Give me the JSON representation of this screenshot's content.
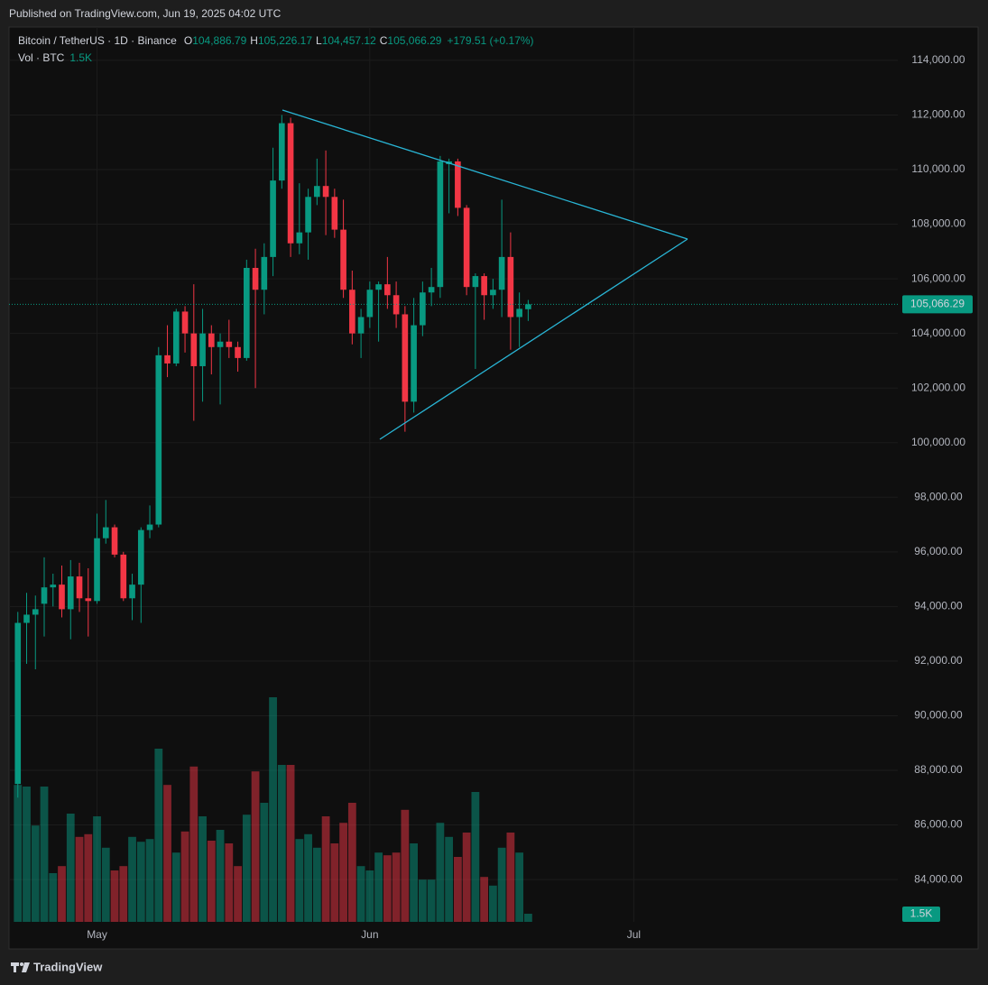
{
  "chart_data": {
    "type": "candlestick",
    "published": "Published on TradingView.com, Jun 19, 2025 04:02 UTC",
    "title": "Bitcoin / TetherUS · 1D · Binance",
    "brand": "TradingView",
    "up_color": "#089981",
    "down_color": "#f23645",
    "grid": true,
    "last": {
      "labels": [
        "O",
        "H",
        "L",
        "C"
      ],
      "value_labels": [
        "104,886.79",
        "105,226.17",
        "104,457.12",
        "105,066.29"
      ],
      "change": "+179.51 (+0.17%)"
    },
    "open": [
      87500,
      93400,
      93700,
      94100,
      94700,
      94800,
      93900,
      95100,
      94300,
      94200,
      96500,
      96900,
      95900,
      94300,
      94800,
      96800,
      97000,
      103200,
      102900,
      104800,
      104000,
      102800,
      104000,
      103500,
      103700,
      103500,
      103100,
      106400,
      105600,
      106800,
      109600,
      111700,
      107300,
      107700,
      109000,
      109400,
      109000,
      107800,
      105600,
      104000,
      104600,
      105600,
      105800,
      105400,
      104700,
      101500,
      104300,
      105500,
      105700,
      110200,
      110300,
      108600,
      105700,
      106100,
      105400,
      105600,
      106800,
      104600,
      104886.79
    ],
    "high": [
      93800,
      94500,
      94400,
      95800,
      95200,
      95500,
      95700,
      95600,
      95400,
      97400,
      97900,
      97000,
      96000,
      95200,
      96900,
      97700,
      103500,
      104300,
      104900,
      105000,
      105800,
      104900,
      104300,
      104000,
      104500,
      103700,
      106700,
      107100,
      107300,
      110800,
      112000,
      111900,
      109500,
      109300,
      110400,
      110700,
      109300,
      108900,
      106300,
      104900,
      105900,
      105900,
      106800,
      105900,
      105000,
      105300,
      105900,
      106400,
      110500,
      110400,
      110400,
      108700,
      106200,
      106200,
      106000,
      108900,
      107700,
      105500,
      105226.17
    ],
    "low": [
      87000,
      91900,
      91700,
      92900,
      94000,
      93600,
      92800,
      93800,
      92900,
      94100,
      96300,
      95800,
      94200,
      93500,
      93400,
      96500,
      96900,
      102400,
      102800,
      103300,
      100800,
      101500,
      102500,
      101400,
      103100,
      102600,
      103000,
      102000,
      104700,
      106100,
      109300,
      106800,
      106900,
      106700,
      108700,
      107600,
      107500,
      105300,
      103600,
      103100,
      104200,
      103700,
      104900,
      104200,
      100400,
      101100,
      103900,
      105000,
      105300,
      108400,
      108300,
      105400,
      102700,
      104500,
      104900,
      104600,
      103400,
      103500,
      104457.12
    ],
    "close": [
      93400,
      93700,
      93900,
      94700,
      94800,
      93900,
      95100,
      94300,
      94200,
      96500,
      96900,
      95900,
      94300,
      94800,
      96800,
      97000,
      103200,
      102900,
      104800,
      104000,
      102800,
      104000,
      103500,
      103700,
      103500,
      103100,
      106400,
      105600,
      106800,
      109600,
      111700,
      107300,
      107700,
      109000,
      109400,
      109000,
      107800,
      105600,
      104000,
      104600,
      105600,
      105800,
      105400,
      104700,
      101500,
      104300,
      105500,
      105700,
      110300,
      110300,
      108600,
      105700,
      106100,
      105400,
      105600,
      106800,
      104600,
      104900,
      105066.29
    ],
    "volume": {
      "name": "Vol · BTC",
      "last_label": "1.5K",
      "ylim": [
        0,
        45000
      ],
      "values": [
        25300,
        25000,
        17800,
        25000,
        9000,
        10300,
        20000,
        15700,
        16200,
        19500,
        13700,
        9500,
        10300,
        15700,
        14800,
        15300,
        32000,
        25300,
        12800,
        16700,
        28700,
        19500,
        15000,
        17000,
        14500,
        10300,
        19800,
        27800,
        22000,
        41500,
        29000,
        29000,
        15300,
        16200,
        13700,
        19500,
        14500,
        18300,
        22000,
        10300,
        9500,
        12800,
        12300,
        12800,
        20700,
        14500,
        7800,
        7800,
        18300,
        15700,
        12000,
        16500,
        24000,
        8300,
        6700,
        13700,
        16500,
        12800,
        1500
      ]
    },
    "xlim": [
      -1,
      100
    ],
    "xticks": [
      {
        "value": 9,
        "label": "May"
      },
      {
        "value": 40,
        "label": "Jun"
      },
      {
        "value": 70,
        "label": "Jul"
      }
    ],
    "ylim": [
      82450,
      115220
    ],
    "yticks": [
      {
        "value": 84000,
        "label": "84,000.00"
      },
      {
        "value": 86000,
        "label": "86,000.00"
      },
      {
        "value": 88000,
        "label": "88,000.00"
      },
      {
        "value": 90000,
        "label": "90,000.00"
      },
      {
        "value": 92000,
        "label": "92,000.00"
      },
      {
        "value": 94000,
        "label": "94,000.00"
      },
      {
        "value": 96000,
        "label": "96,000.00"
      },
      {
        "value": 98000,
        "label": "98,000.00"
      },
      {
        "value": 100000,
        "label": "100,000.00"
      },
      {
        "value": 102000,
        "label": "102,000.00"
      },
      {
        "value": 104000,
        "label": "104,000.00"
      },
      {
        "value": 106000,
        "label": "106,000.00"
      },
      {
        "value": 108000,
        "label": "108,000.00"
      },
      {
        "value": 110000,
        "label": "110,000.00"
      },
      {
        "value": 112000,
        "label": "112,000.00"
      },
      {
        "value": 114000,
        "label": "114,000.00"
      }
    ]
  }
}
